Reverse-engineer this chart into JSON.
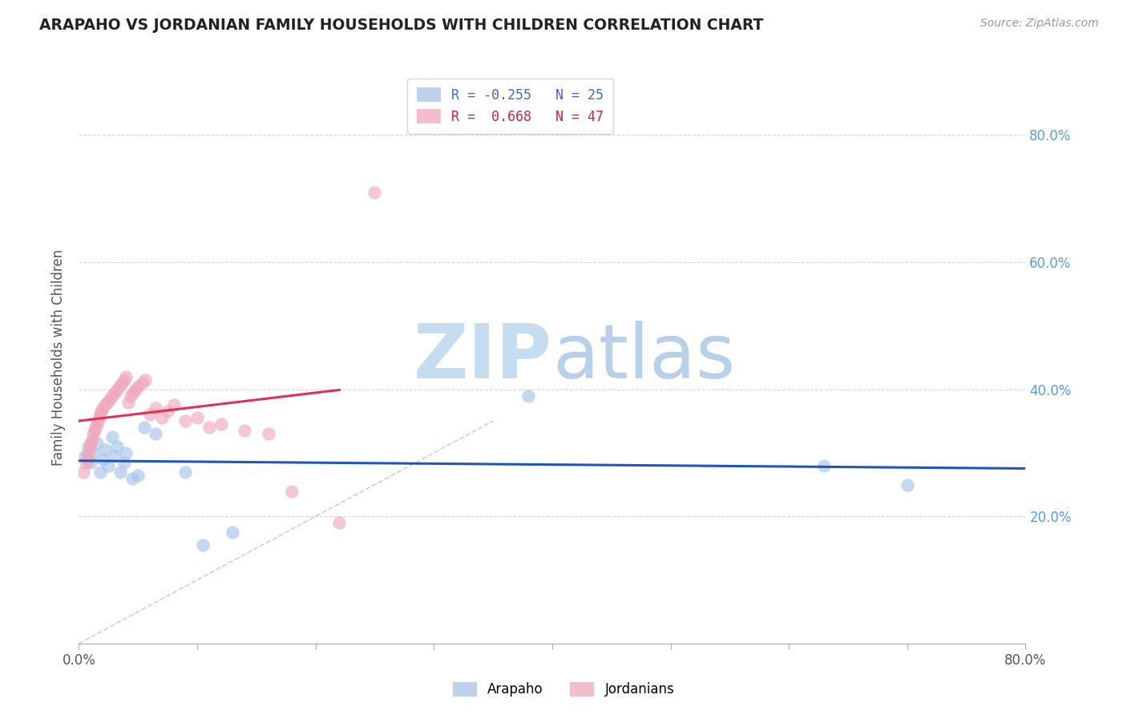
{
  "title": "ARAPAHO VS JORDANIAN FAMILY HOUSEHOLDS WITH CHILDREN CORRELATION CHART",
  "source": "Source: ZipAtlas.com",
  "ylabel": "Family Households with Children",
  "xlim": [
    0.0,
    0.8
  ],
  "ylim": [
    0.0,
    0.9
  ],
  "background_color": "#ffffff",
  "grid_color": "#d0d0d8",
  "arapaho_color": "#a8c4e8",
  "jordanian_color": "#f0a8bc",
  "arapaho_line_color": "#2255bb",
  "jordanian_line_color": "#e03055",
  "diagonal_color": "#e0b8b8",
  "legend_arapaho_label": "R = -0.255   N = 25",
  "legend_jordanian_label": "R =  0.668   N = 47",
  "arapaho_x": [
    0.005,
    0.008,
    0.01,
    0.012,
    0.015,
    0.018,
    0.02,
    0.022,
    0.025,
    0.028,
    0.03,
    0.032,
    0.035,
    0.038,
    0.04,
    0.045,
    0.05,
    0.055,
    0.065,
    0.09,
    0.105,
    0.13,
    0.38,
    0.63,
    0.7
  ],
  "arapaho_y": [
    0.295,
    0.31,
    0.285,
    0.3,
    0.315,
    0.27,
    0.29,
    0.305,
    0.28,
    0.325,
    0.295,
    0.31,
    0.27,
    0.285,
    0.3,
    0.26,
    0.265,
    0.34,
    0.33,
    0.27,
    0.155,
    0.175,
    0.39,
    0.28,
    0.25
  ],
  "jordanian_x": [
    0.004,
    0.006,
    0.007,
    0.008,
    0.009,
    0.01,
    0.011,
    0.012,
    0.013,
    0.014,
    0.015,
    0.016,
    0.017,
    0.018,
    0.019,
    0.02,
    0.022,
    0.024,
    0.026,
    0.028,
    0.03,
    0.032,
    0.034,
    0.036,
    0.038,
    0.04,
    0.042,
    0.044,
    0.046,
    0.048,
    0.05,
    0.053,
    0.056,
    0.06,
    0.065,
    0.07,
    0.075,
    0.08,
    0.09,
    0.1,
    0.11,
    0.12,
    0.14,
    0.16,
    0.18,
    0.22,
    0.25
  ],
  "jordanian_y": [
    0.27,
    0.285,
    0.29,
    0.3,
    0.31,
    0.315,
    0.32,
    0.33,
    0.335,
    0.34,
    0.345,
    0.35,
    0.355,
    0.36,
    0.365,
    0.37,
    0.375,
    0.38,
    0.385,
    0.39,
    0.395,
    0.4,
    0.405,
    0.41,
    0.415,
    0.42,
    0.38,
    0.39,
    0.395,
    0.4,
    0.405,
    0.41,
    0.415,
    0.36,
    0.37,
    0.355,
    0.365,
    0.375,
    0.35,
    0.355,
    0.34,
    0.345,
    0.335,
    0.33,
    0.24,
    0.19,
    0.71
  ],
  "arapaho_R": -0.255,
  "jordanian_R": 0.668,
  "watermark_zip_color": "#c5ddf0",
  "watermark_atlas_color": "#b8d0e8"
}
